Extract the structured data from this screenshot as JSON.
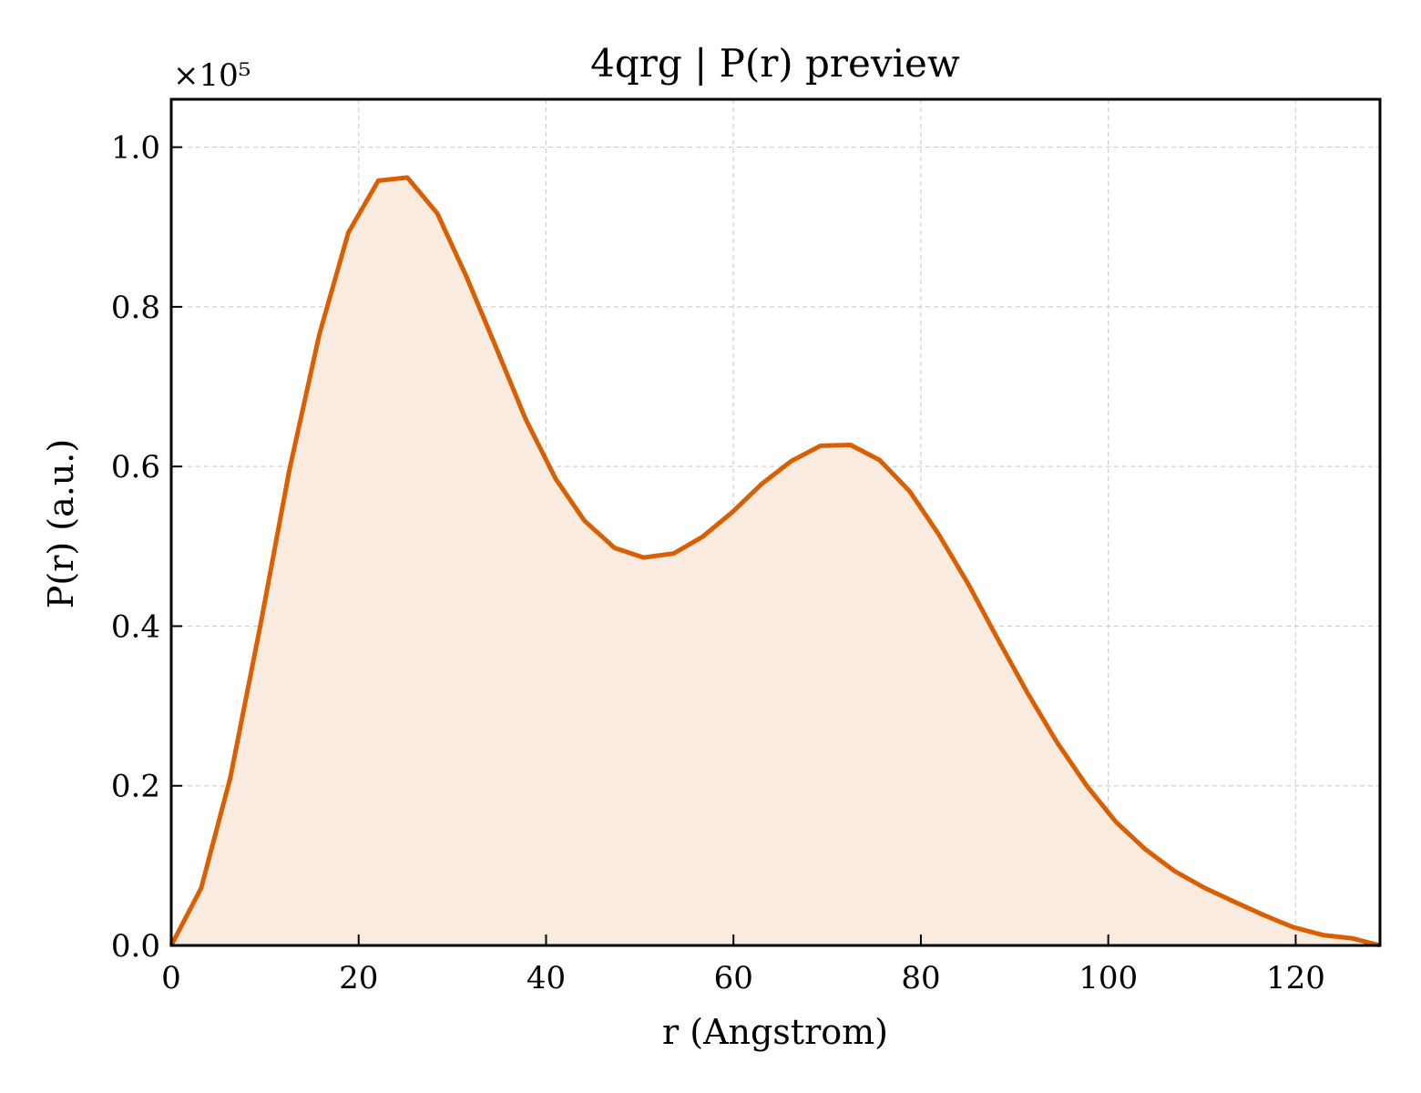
{
  "chart_data": {
    "type": "area",
    "title": "4qrg | P(r) preview",
    "xlabel": "r (Angstrom)",
    "ylabel": "P(r) (a.u.)",
    "y_multiplier": "×10⁵",
    "xlim": [
      0,
      129
    ],
    "ylim": [
      0,
      1.06
    ],
    "xticks": [
      0,
      20,
      40,
      60,
      80,
      100,
      120
    ],
    "yticks": [
      0.0,
      0.2,
      0.4,
      0.6,
      0.8,
      1.0
    ],
    "xtick_labels": [
      "0",
      "20",
      "40",
      "60",
      "80",
      "100",
      "120"
    ],
    "ytick_labels": [
      "0.0",
      "0.2",
      "0.4",
      "0.6",
      "0.8",
      "1.0"
    ],
    "grid": true,
    "colors": {
      "line": "#d95f02",
      "fill": "#f9ebe0"
    },
    "series": [
      {
        "x": [
          0,
          3.2,
          6.3,
          9.5,
          12.6,
          15.8,
          18.9,
          22.1,
          25.2,
          28.4,
          31.5,
          34.7,
          37.8,
          41.0,
          44.1,
          47.3,
          50.4,
          53.6,
          56.7,
          59.9,
          63.0,
          66.2,
          69.3,
          72.5,
          75.6,
          78.8,
          81.9,
          85.1,
          88.2,
          91.4,
          94.5,
          97.7,
          100.8,
          104.0,
          107.1,
          110.3,
          113.4,
          116.6,
          119.7,
          122.9,
          126.0,
          129.0
        ],
        "y": [
          0.0,
          0.072,
          0.21,
          0.4,
          0.595,
          0.765,
          0.893,
          0.958,
          0.962,
          0.917,
          0.838,
          0.748,
          0.66,
          0.585,
          0.532,
          0.498,
          0.486,
          0.491,
          0.512,
          0.543,
          0.578,
          0.607,
          0.626,
          0.627,
          0.608,
          0.569,
          0.515,
          0.452,
          0.384,
          0.316,
          0.255,
          0.2,
          0.155,
          0.12,
          0.093,
          0.072,
          0.055,
          0.038,
          0.023,
          0.013,
          0.009,
          0.0
        ]
      }
    ]
  }
}
